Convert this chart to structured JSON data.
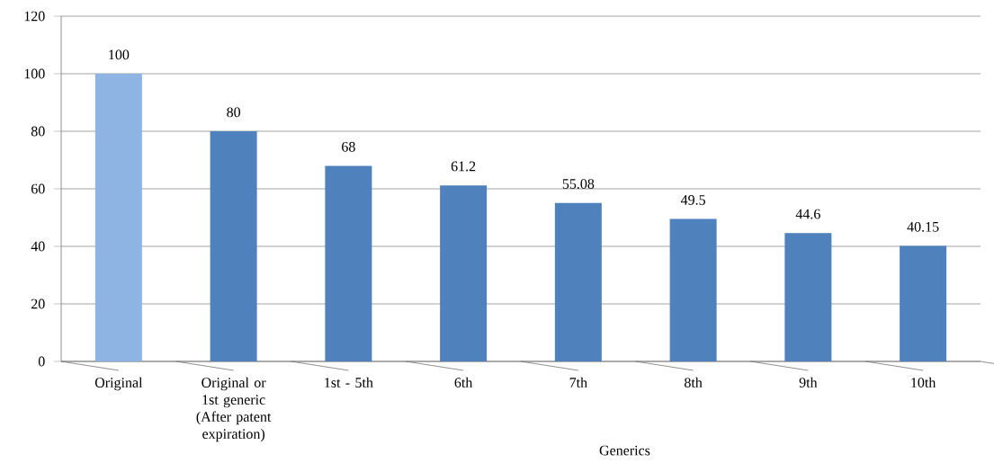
{
  "chart_data": {
    "type": "bar",
    "xlabel": "Generics",
    "categories": [
      "Original",
      "Original or 1st generic (After patent expiration)",
      "1st - 5th",
      "6th",
      "7th",
      "8th",
      "9th",
      "10th"
    ],
    "values": [
      100,
      80,
      68,
      61.2,
      55.08,
      49.5,
      44.6,
      40.15
    ],
    "colors": [
      "#8eb4e3",
      "#4f81bd",
      "#4f81bd",
      "#4f81bd",
      "#4f81bd",
      "#4f81bd",
      "#4f81bd",
      "#4f81bd"
    ],
    "ylim": [
      0,
      120
    ],
    "yticks": [
      0,
      20,
      40,
      60,
      80,
      100,
      120
    ],
    "grid": "y",
    "data_labels": true
  }
}
